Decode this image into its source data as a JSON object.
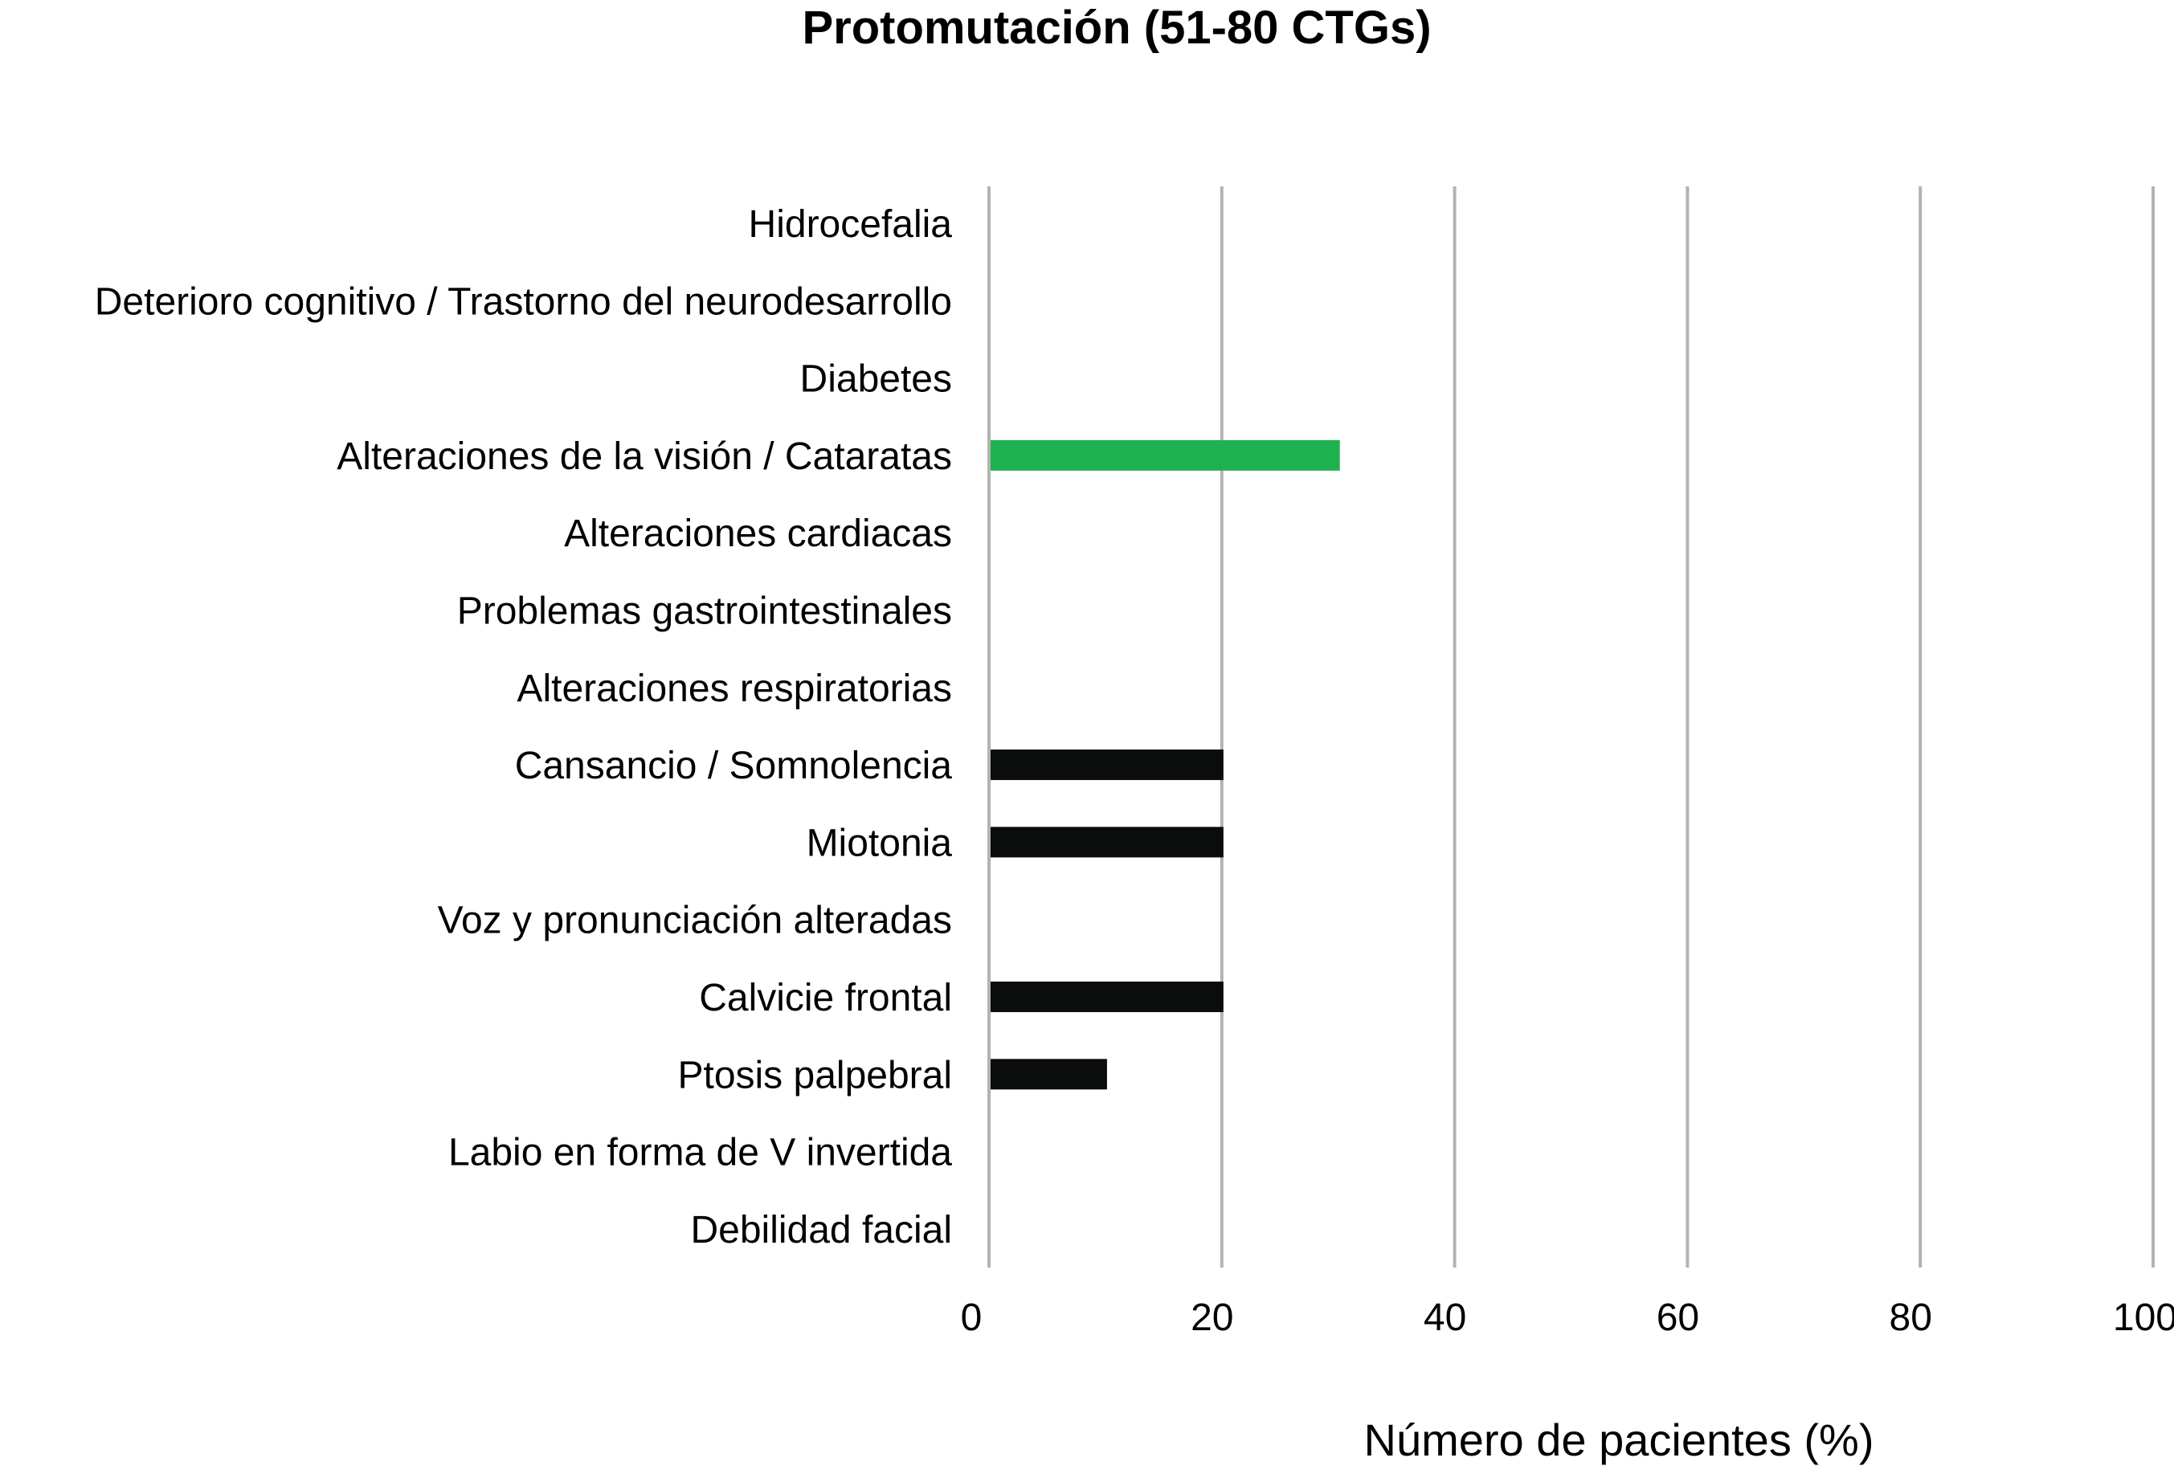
{
  "chart_data": {
    "type": "bar",
    "orientation": "horizontal",
    "title": "Protomutación (51-80 CTGs)",
    "xlabel": "Número de pacientes (%)",
    "ylabel": "",
    "xlim": [
      0,
      100
    ],
    "xticks": [
      0,
      20,
      40,
      60,
      80,
      100
    ],
    "grid": "vertical",
    "legend": "none",
    "categories": [
      "Hidrocefalia",
      "Deterioro cognitivo / Trastorno del neurodesarrollo",
      "Diabetes",
      "Alteraciones de la visión / Cataratas",
      "Alteraciones cardiacas",
      "Problemas gastrointestinales",
      "Alteraciones respiratorias",
      "Cansancio / Somnolencia",
      "Miotonia",
      "Voz y pronunciación alteradas",
      "Calvicie frontal",
      "Ptosis palpebral",
      "Labio en forma de V invertida",
      "Debilidad facial"
    ],
    "values": [
      0,
      0,
      0,
      30,
      0,
      0,
      0,
      20,
      20,
      0,
      20,
      10,
      0,
      0
    ],
    "bar_colors": [
      "#0b0d0d",
      "#0b0d0d",
      "#0b0d0d",
      "#1fb14f",
      "#0b0d0d",
      "#0b0d0d",
      "#0b0d0d",
      "#0b0d0d",
      "#0b0d0d",
      "#0b0d0d",
      "#0b0d0d",
      "#0b0d0d",
      "#0b0d0d",
      "#0b0d0d"
    ],
    "gridline_color": "#b3b3b3"
  }
}
